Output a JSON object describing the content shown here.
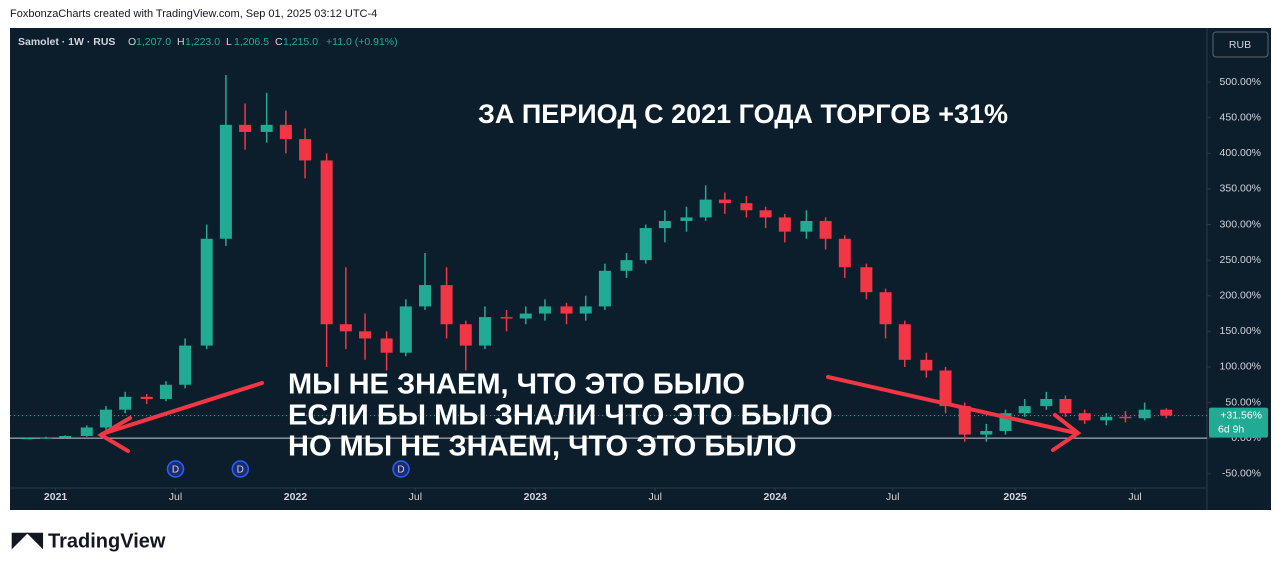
{
  "header": "FoxbonzaCharts created with TradingView.com, Sep 01, 2025 03:12 UTC-4",
  "footer": "TradingView",
  "chart_data": {
    "type": "candlestick",
    "symbol": "Samolet · 1W · RUS",
    "ohlc_legend": [
      {
        "key": "O",
        "value": "1,207.0"
      },
      {
        "key": "H",
        "value": "1,223.0"
      },
      {
        "key": "L",
        "value": "1,206.5"
      },
      {
        "key": "C",
        "value": "1,215.0"
      }
    ],
    "change": "+11.0 (+0.91%)",
    "currency": "RUB",
    "title": "ЗА ПЕРИОД С 2021 ГОДА ТОРГОВ +31%",
    "annotations": [
      "МЫ НЕ ЗНАЕМ, ЧТО ЭТО БЫЛО",
      "ЕСЛИ БЫ МЫ ЗНАЛИ ЧТО ЭТО БЫЛО",
      "НО МЫ НЕ ЗНАЕМ, ЧТО ЭТО БЫЛО"
    ],
    "dividend_markers": [
      {
        "x": 2021.5,
        "label": "D"
      },
      {
        "x": 2021.77,
        "label": "D"
      },
      {
        "x": 2022.44,
        "label": "D"
      }
    ],
    "last_price": {
      "value": 31.56,
      "label": "+31.56%"
    },
    "countdown": "6d 9h",
    "baseline": 0,
    "up_color": "#22ab94",
    "down_color": "#f23645",
    "x": [
      2020.88,
      2020.96,
      2021.04,
      2021.13,
      2021.21,
      2021.29,
      2021.38,
      2021.46,
      2021.54,
      2021.63,
      2021.71,
      2021.79,
      2021.88,
      2021.96,
      2022.04,
      2022.13,
      2022.21,
      2022.29,
      2022.38,
      2022.46,
      2022.54,
      2022.63,
      2022.71,
      2022.79,
      2022.88,
      2022.96,
      2023.04,
      2023.13,
      2023.21,
      2023.29,
      2023.38,
      2023.46,
      2023.54,
      2023.63,
      2023.71,
      2023.79,
      2023.88,
      2023.96,
      2024.04,
      2024.13,
      2024.21,
      2024.29,
      2024.38,
      2024.46,
      2024.54,
      2024.63,
      2024.71,
      2024.79,
      2024.88,
      2024.96,
      2025.04,
      2025.13,
      2025.21,
      2025.29,
      2025.38,
      2025.46,
      2025.54,
      2025.63
    ],
    "open": [
      0,
      0,
      1,
      3,
      15,
      40,
      58,
      55,
      75,
      130,
      280,
      440,
      430,
      440,
      420,
      390,
      160,
      150,
      140,
      120,
      185,
      215,
      160,
      130,
      170,
      168,
      175,
      185,
      175,
      185,
      235,
      250,
      295,
      305,
      310,
      335,
      330,
      320,
      310,
      290,
      305,
      280,
      240,
      205,
      160,
      110,
      95,
      45,
      5,
      10,
      35,
      45,
      55,
      35,
      25,
      30,
      28,
      40
    ],
    "high": [
      1,
      2,
      4,
      18,
      45,
      65,
      62,
      80,
      140,
      300,
      510,
      470,
      485,
      460,
      435,
      400,
      240,
      175,
      150,
      195,
      260,
      240,
      165,
      185,
      180,
      185,
      195,
      190,
      200,
      245,
      260,
      300,
      320,
      325,
      355,
      345,
      340,
      325,
      315,
      320,
      310,
      285,
      245,
      210,
      165,
      120,
      100,
      50,
      20,
      40,
      55,
      65,
      60,
      40,
      35,
      38,
      50,
      42
    ],
    "low": [
      -1,
      -1,
      0,
      2,
      12,
      35,
      48,
      52,
      70,
      125,
      270,
      405,
      415,
      400,
      365,
      100,
      125,
      110,
      95,
      115,
      180,
      140,
      95,
      125,
      150,
      160,
      165,
      160,
      165,
      180,
      225,
      245,
      275,
      290,
      305,
      315,
      310,
      295,
      275,
      280,
      265,
      225,
      195,
      140,
      100,
      85,
      35,
      -5,
      -5,
      5,
      30,
      40,
      30,
      20,
      18,
      22,
      25,
      28
    ],
    "close": [
      0,
      1,
      3,
      15,
      40,
      58,
      55,
      75,
      130,
      280,
      440,
      430,
      440,
      420,
      390,
      160,
      150,
      140,
      120,
      185,
      215,
      160,
      130,
      170,
      168,
      175,
      185,
      175,
      185,
      235,
      250,
      295,
      305,
      310,
      335,
      330,
      320,
      310,
      290,
      305,
      280,
      240,
      205,
      160,
      110,
      95,
      45,
      5,
      10,
      35,
      45,
      55,
      35,
      25,
      30,
      28,
      40,
      31.56
    ],
    "xlim": [
      2020.81,
      2025.8
    ],
    "xticks": [
      {
        "value": 2021,
        "label": "2021"
      },
      {
        "value": 2021.5,
        "label": "Jul"
      },
      {
        "value": 2022,
        "label": "2022"
      },
      {
        "value": 2022.5,
        "label": "Jul"
      },
      {
        "value": 2023,
        "label": "2023"
      },
      {
        "value": 2023.5,
        "label": "Jul"
      },
      {
        "value": 2024,
        "label": "2024"
      },
      {
        "value": 2024.49,
        "label": "Jul"
      },
      {
        "value": 2025,
        "label": "2025"
      },
      {
        "value": 2025.5,
        "label": "Jul"
      }
    ],
    "ylim": [
      -70,
      576
    ],
    "yticks": [
      {
        "value": -50,
        "label": "-50.00%"
      },
      {
        "value": 0,
        "label": "0.00%"
      },
      {
        "value": 50,
        "label": "50.00%"
      },
      {
        "value": 100,
        "label": "100.00%"
      },
      {
        "value": 150,
        "label": "150.00%"
      },
      {
        "value": 200,
        "label": "200.00%"
      },
      {
        "value": 250,
        "label": "250.00%"
      },
      {
        "value": 300,
        "label": "300.00%"
      },
      {
        "value": 350,
        "label": "350.00%"
      },
      {
        "value": 400,
        "label": "400.00%"
      },
      {
        "value": 450,
        "label": "450.00%"
      },
      {
        "value": 500,
        "label": "500.00%"
      }
    ]
  }
}
